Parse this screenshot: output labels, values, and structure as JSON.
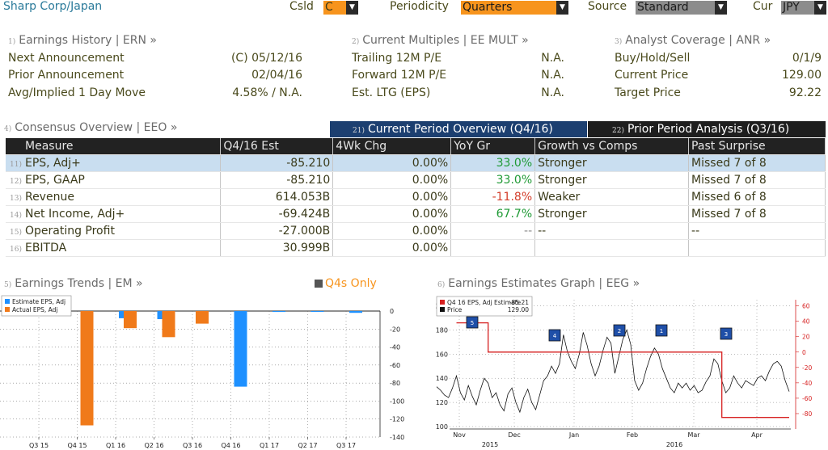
{
  "header": {
    "security": "Sharp Corp/Japan",
    "csld_label": "Csld",
    "csld_value": "C",
    "periodicity_label": "Periodicity",
    "periodicity_value": "Quarters",
    "source_label": "Source",
    "source_value": "Standard",
    "cur_label": "Cur",
    "cur_value": "JPY"
  },
  "earnings_history": {
    "num": "1)",
    "title": "Earnings History | ERN »",
    "rows": [
      {
        "label": "Next Announcement",
        "value": "(C)  05/12/16"
      },
      {
        "label": "Prior Announcement",
        "value": "02/04/16"
      },
      {
        "label": "Avg/Implied 1 Day Move",
        "value": "4.58% / N.A."
      }
    ]
  },
  "current_multiples": {
    "num": "2)",
    "title": "Current Multiples | EE MULT »",
    "rows": [
      {
        "label": "Trailing 12M P/E",
        "value": "N.A."
      },
      {
        "label": "Forward 12M P/E",
        "value": "N.A."
      },
      {
        "label": "Est. LTG (EPS)",
        "value": "N.A."
      }
    ]
  },
  "analyst_coverage": {
    "num": "3)",
    "title": "Analyst Coverage | ANR »",
    "rows": [
      {
        "label": "Buy/Hold/Sell",
        "value": "0/1/9"
      },
      {
        "label": "Current Price",
        "value": "129.00"
      },
      {
        "label": "Target Price",
        "value": "92.22"
      }
    ]
  },
  "consensus": {
    "num": "4)",
    "title": "Consensus Overview | EEO »",
    "tab_current_num": "21)",
    "tab_current": "Current Period Overview (Q4/16)",
    "tab_prior_num": "22)",
    "tab_prior": "Prior Period Analysis (Q3/16)",
    "headers": [
      "Measure",
      "Q4/16 Est",
      "4Wk Chg",
      "YoY Gr",
      "Growth vs Comps",
      "Past Surprise"
    ],
    "rows": [
      {
        "num": "11)",
        "measure": "EPS, Adj+",
        "est": "-85.210",
        "chg": "0.00%",
        "yoy": "33.0%",
        "yoy_color": "green",
        "growth": "Stronger",
        "surprise": "Missed 7 of 8"
      },
      {
        "num": "12)",
        "measure": "EPS, GAAP",
        "est": "-85.210",
        "chg": "0.00%",
        "yoy": "33.0%",
        "yoy_color": "green",
        "growth": "Stronger",
        "surprise": "Missed 7 of 8"
      },
      {
        "num": "13)",
        "measure": "Revenue",
        "est": "614.053B",
        "chg": "0.00%",
        "yoy": "-11.8%",
        "yoy_color": "red",
        "growth": "Weaker",
        "surprise": "Missed 6 of 8"
      },
      {
        "num": "14)",
        "measure": "Net Income, Adj+",
        "est": "-69.424B",
        "chg": "0.00%",
        "yoy": "67.7%",
        "yoy_color": "green",
        "growth": "Stronger",
        "surprise": "Missed 7 of 8"
      },
      {
        "num": "15)",
        "measure": "Operating Profit",
        "est": "-27.000B",
        "chg": "0.00%",
        "yoy": "--",
        "yoy_color": "grey",
        "growth": "--",
        "surprise": "--"
      },
      {
        "num": "16)",
        "measure": "EBITDA",
        "est": "30.999B",
        "chg": "0.00%",
        "yoy": "",
        "yoy_color": "grey",
        "growth": "",
        "surprise": ""
      }
    ]
  },
  "earnings_trends": {
    "num": "5)",
    "title": "Earnings Trends | EM »",
    "toggle_label": "Q4s Only"
  },
  "earnings_graph": {
    "num": "6)",
    "title": "Earnings Estimates Graph | EEG »"
  },
  "colors": {
    "estimate": "#1e90ff",
    "actual": "#f07a1a",
    "price": "#111111",
    "estimate_line": "#d62020",
    "accent_orange": "#f7941d",
    "tab_blue": "#1c3f70"
  },
  "chart_data": [
    {
      "type": "bar",
      "categories": [
        "Q3 15",
        "Q4 15",
        "Q1 16",
        "Q2 16",
        "Q3 16",
        "Q4 16",
        "Q1 17",
        "Q2 17",
        "Q3 17"
      ],
      "series": [
        {
          "name": "Estimate EPS, Adj",
          "values": [
            null,
            null,
            -8,
            -9,
            null,
            -84,
            -1,
            -0.5,
            -2
          ]
        },
        {
          "name": "Actual EPS, Adj",
          "values": [
            null,
            -127,
            -19,
            -29,
            -14,
            null,
            null,
            null,
            null
          ]
        }
      ],
      "ylim": [
        -140,
        0
      ],
      "yticks": [
        0,
        -20,
        -40,
        -60,
        -80,
        -100,
        -120,
        -140
      ],
      "grid": true,
      "legend": "top-left"
    },
    {
      "type": "line",
      "x_month_labels": [
        "Nov",
        "Dec",
        "Jan",
        "Feb",
        "Mar",
        "Apr"
      ],
      "x_year_labels": [
        "2015",
        "2016"
      ],
      "series": [
        {
          "name": "Q4 16 EPS, Adj Estimate",
          "last": "-85.21",
          "axis": "right"
        },
        {
          "name": "Price",
          "last": "129.00",
          "axis": "left"
        }
      ],
      "price_values": [
        133,
        130,
        126,
        124,
        132,
        142,
        128,
        122,
        134,
        125,
        118,
        130,
        140,
        136,
        124,
        128,
        118,
        113,
        127,
        132,
        120,
        112,
        124,
        131,
        120,
        114,
        126,
        138,
        142,
        150,
        144,
        152,
        176,
        162,
        154,
        148,
        160,
        178,
        167,
        152,
        142,
        150,
        163,
        174,
        169,
        144,
        158,
        172,
        180,
        168,
        138,
        130,
        136,
        148,
        158,
        165,
        160,
        148,
        140,
        132,
        128,
        136,
        132,
        136,
        130,
        134,
        128,
        130,
        137,
        142,
        156,
        152,
        138,
        128,
        132,
        142,
        136,
        132,
        138,
        136,
        134,
        140,
        142,
        138,
        146,
        152,
        154,
        150,
        138,
        129
      ],
      "estimate_values": [
        null,
        null,
        null,
        null,
        null,
        38,
        38,
        38,
        38,
        38,
        38,
        38,
        38,
        0,
        0,
        0,
        0,
        0,
        0,
        0,
        0,
        0,
        0,
        0,
        0,
        0,
        0,
        0,
        0,
        0,
        0,
        0,
        0,
        0,
        0,
        0,
        0,
        0,
        0,
        0,
        0,
        0,
        0,
        0,
        0,
        0,
        0,
        0,
        0,
        0,
        0,
        0,
        0,
        0,
        0,
        0,
        0,
        0,
        0,
        0,
        0,
        0,
        0,
        0,
        0,
        0,
        0,
        0,
        0,
        0,
        0,
        0,
        -85,
        -85,
        -85,
        -85,
        -85,
        -85,
        -85,
        -85,
        -85,
        -85,
        -85,
        -85,
        -85,
        -85,
        -85,
        -85,
        -85,
        -85
      ],
      "yleft_ticks": [
        100,
        120,
        140,
        160,
        180,
        200
      ],
      "yright_ticks": [
        60,
        40,
        20,
        0,
        -20,
        -40,
        -60,
        -80
      ],
      "yleft_lim": [
        98,
        205
      ],
      "yright_lim": [
        -100,
        68
      ],
      "event_markers": [
        "5",
        "4",
        "2",
        "1",
        "3"
      ],
      "grid": true,
      "legend": "top-left"
    }
  ]
}
